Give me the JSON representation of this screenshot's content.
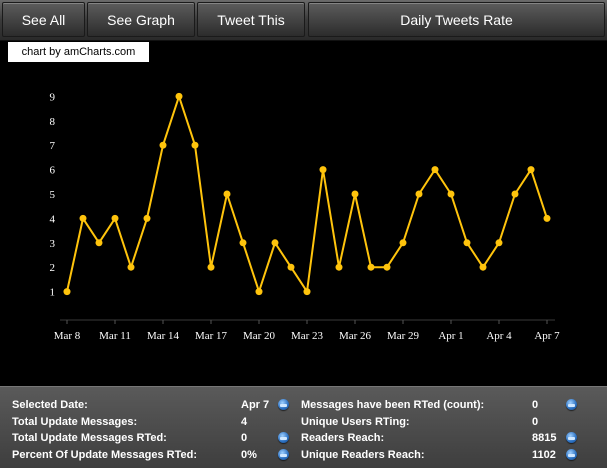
{
  "toolbar": {
    "see_all": "See All",
    "see_graph": "See Graph",
    "tweet_this": "Tweet This",
    "title": "Daily Tweets Rate"
  },
  "credit": "chart by amCharts.com",
  "chart_data": {
    "type": "line",
    "title": "",
    "xlabel": "",
    "ylabel": "",
    "x_tick_labels": [
      "Mar 8",
      "Mar 11",
      "Mar 14",
      "Mar 17",
      "Mar 20",
      "Mar 23",
      "Mar 26",
      "Mar 29",
      "Apr 1",
      "Apr 4",
      "Apr 7"
    ],
    "y_tick_labels": [
      "1",
      "2",
      "3",
      "4",
      "5",
      "6",
      "7",
      "8",
      "9"
    ],
    "ylim": [
      0,
      9
    ],
    "grid": false,
    "line_color": "#ffc40c",
    "series": [
      {
        "x": [
          "Mar 8",
          "Mar 9",
          "Mar 10",
          "Mar 11",
          "Mar 12",
          "Mar 13",
          "Mar 14",
          "Mar 15",
          "Mar 16",
          "Mar 17",
          "Mar 18",
          "Mar 19",
          "Mar 20",
          "Mar 21",
          "Mar 22",
          "Mar 23",
          "Mar 24",
          "Mar 25",
          "Mar 26",
          "Mar 27",
          "Mar 28",
          "Mar 29",
          "Mar 30",
          "Mar 31",
          "Apr 1",
          "Apr 2",
          "Apr 3",
          "Apr 4",
          "Apr 5",
          "Apr 6",
          "Apr 7"
        ],
        "values": [
          1,
          4,
          3,
          4,
          2,
          4,
          7,
          9,
          7,
          2,
          5,
          3,
          1,
          3,
          2,
          1,
          6,
          2,
          5,
          2,
          2,
          3,
          5,
          6,
          5,
          3,
          2,
          3,
          5,
          6,
          4
        ]
      }
    ]
  },
  "stats": {
    "selected_date_label": "Selected Date:",
    "selected_date_value": "Apr 7",
    "total_updates_label": "Total Update Messages:",
    "total_updates_value": "4",
    "total_rted_label": "Total Update Messages RTed:",
    "total_rted_value": "0",
    "percent_rted_label": "Percent Of Update Messages RTed:",
    "percent_rted_value": "0%",
    "rted_count_label": "Messages have been RTed (count):",
    "rted_count_value": "0",
    "unique_users_label": "Unique Users RTing:",
    "unique_users_value": "0",
    "readers_reach_label": "Readers Reach:",
    "readers_reach_value": "8815",
    "unique_readers_label": "Unique Readers Reach:",
    "unique_readers_value": "1102"
  }
}
